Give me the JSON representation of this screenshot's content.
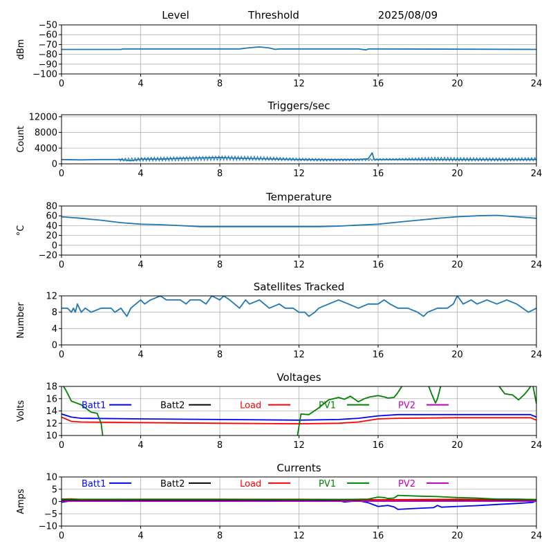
{
  "header": {
    "level_label": "Level",
    "threshold_label": "Threshold",
    "date": "2025/08/09"
  },
  "colors": {
    "series": "#1f77b4",
    "grid": "#b0b0b0"
  },
  "legend": [
    {
      "name": "Batt1",
      "color": "#0000ff"
    },
    {
      "name": "Batt2",
      "color": "#000000"
    },
    {
      "name": "Load",
      "color": "#ff0000"
    },
    {
      "name": "PV1",
      "color": "#008000"
    },
    {
      "name": "PV2",
      "color": "#c000c0"
    }
  ],
  "chart_data": [
    {
      "id": "level",
      "type": "line",
      "title": "",
      "ylabel": "dBm",
      "xlim": [
        0,
        24
      ],
      "ylim": [
        -100,
        -50
      ],
      "xticks": [
        0,
        4,
        8,
        12,
        16,
        20,
        24
      ],
      "yticks": [
        -100,
        -90,
        -80,
        -70,
        -60,
        -50
      ],
      "grid": true,
      "series": [
        {
          "color": "#1f77b4",
          "x": [
            0,
            3,
            3.1,
            9,
            9.4,
            10.0,
            10.5,
            10.8,
            11,
            15,
            15.4,
            15.5,
            16,
            24
          ],
          "y": [
            -75,
            -75,
            -74.5,
            -74.5,
            -73.5,
            -72.5,
            -73.5,
            -75,
            -74.5,
            -74.5,
            -75.5,
            -74.5,
            -74.5,
            -75
          ]
        }
      ]
    },
    {
      "id": "triggers",
      "type": "line",
      "title": "Triggers/sec",
      "ylabel": "Count",
      "xlim": [
        0,
        24
      ],
      "ylim": [
        0,
        12500
      ],
      "xticks": [
        0,
        4,
        8,
        12,
        16,
        20,
        24
      ],
      "yticks": [
        0,
        4000,
        8000,
        12000
      ],
      "grid": true,
      "series": [
        {
          "color": "#1f77b4",
          "x": [
            0,
            1,
            2,
            3,
            3.5,
            4,
            5,
            6,
            7,
            8,
            9,
            10,
            11,
            12,
            13,
            14,
            15,
            15.5,
            15.7,
            15.8,
            16,
            17,
            18,
            19,
            20,
            21,
            22,
            23,
            24
          ],
          "y": [
            1100,
            1000,
            1100,
            1100,
            800,
            1200,
            1200,
            1400,
            1500,
            1600,
            1400,
            1300,
            1200,
            1100,
            1100,
            1100,
            1100,
            1300,
            2800,
            1100,
            1100,
            1100,
            1100,
            1100,
            1100,
            1100,
            1100,
            1100,
            1100
          ],
          "band": {
            "from": 2.9,
            "to": 24,
            "low": [
              700,
              700,
              800,
              900,
              900,
              800,
              700,
              800,
              900,
              800,
              700,
              700,
              800
            ],
            "high": [
              1400,
              1700,
              1800,
              2000,
              1900,
              1500,
              1300,
              1300,
              1400,
              1700,
              1600,
              1500,
              1600
            ]
          }
        }
      ]
    },
    {
      "id": "temperature",
      "type": "line",
      "title": "Temperature",
      "ylabel": "°C",
      "xlim": [
        0,
        24
      ],
      "ylim": [
        -20,
        80
      ],
      "xticks": [
        0,
        4,
        8,
        12,
        16,
        20,
        24
      ],
      "yticks": [
        -20,
        0,
        20,
        40,
        60,
        80
      ],
      "grid": true,
      "series": [
        {
          "color": "#1f77b4",
          "x": [
            0,
            1,
            2,
            3,
            4,
            5,
            6,
            7,
            8,
            9,
            10,
            11,
            12,
            13,
            14,
            15,
            16,
            17,
            18,
            19,
            20,
            21,
            22,
            23,
            24
          ],
          "y": [
            58,
            55,
            51,
            46,
            43,
            42,
            40,
            38,
            38,
            38,
            38,
            38,
            38,
            38,
            39,
            41,
            43,
            47,
            51,
            55,
            58,
            60,
            61,
            58,
            55
          ]
        }
      ]
    },
    {
      "id": "satellites",
      "type": "line",
      "title": "Satellites Tracked",
      "ylabel": "Number",
      "xlim": [
        0,
        24
      ],
      "ylim": [
        0,
        12
      ],
      "xticks": [
        0,
        4,
        8,
        12,
        16,
        20,
        24
      ],
      "yticks": [
        0,
        4,
        8,
        12
      ],
      "grid": true,
      "series": [
        {
          "color": "#1f77b4",
          "x": [
            0,
            0.3,
            0.5,
            0.6,
            0.7,
            0.8,
            1.0,
            1.2,
            1.5,
            2.0,
            2.5,
            2.7,
            3.0,
            3.3,
            3.5,
            4.0,
            4.2,
            4.5,
            5.0,
            5.3,
            5.5,
            6.0,
            6.3,
            6.5,
            7.0,
            7.3,
            7.6,
            8.0,
            8.2,
            8.5,
            9.0,
            9.3,
            9.5,
            10.0,
            10.5,
            11.0,
            11.3,
            11.7,
            12.0,
            12.3,
            12.5,
            12.8,
            13.0,
            13.5,
            14.0,
            14.5,
            15.0,
            15.5,
            16.0,
            16.3,
            16.6,
            17.0,
            17.5,
            18.0,
            18.3,
            18.5,
            19.0,
            19.5,
            19.8,
            20.0,
            20.3,
            20.7,
            21.0,
            21.5,
            22.0,
            22.5,
            23.0,
            23.3,
            23.6,
            24.0
          ],
          "y": [
            9,
            9,
            8,
            9,
            8,
            10,
            8,
            9,
            8,
            9,
            9,
            8,
            9,
            7,
            9,
            11,
            10,
            11,
            12,
            11,
            11,
            11,
            10,
            11,
            11,
            10,
            12,
            11,
            12,
            11,
            9,
            11,
            10,
            11,
            9,
            10,
            9,
            9,
            8,
            8,
            7,
            8,
            9,
            10,
            11,
            10,
            9,
            10,
            10,
            11,
            10,
            9,
            9,
            8,
            7,
            8,
            9,
            9,
            10,
            12,
            10,
            11,
            10,
            11,
            10,
            11,
            10,
            9,
            8,
            9
          ]
        }
      ]
    },
    {
      "id": "voltages",
      "type": "line",
      "title": "Voltages",
      "ylabel": "Volts",
      "xlim": [
        0,
        24
      ],
      "ylim": [
        10,
        18
      ],
      "xticks": [
        0,
        4,
        8,
        12,
        16,
        20,
        24
      ],
      "yticks": [
        10,
        12,
        14,
        16,
        18
      ],
      "grid": true,
      "legend": "upper",
      "legend_y": 15.0,
      "series": [
        {
          "name": "Batt1",
          "color": "#0000ff",
          "x": [
            0,
            0.5,
            1,
            4,
            8,
            12,
            14,
            15,
            16,
            17,
            20,
            23,
            23.7,
            24
          ],
          "y": [
            13.5,
            13.0,
            12.8,
            12.7,
            12.6,
            12.5,
            12.6,
            12.8,
            13.2,
            13.4,
            13.4,
            13.4,
            13.4,
            13.0
          ]
        },
        {
          "name": "Batt2",
          "color": "#000000",
          "x": [],
          "y": []
        },
        {
          "name": "Load",
          "color": "#ff0000",
          "x": [
            0,
            0.5,
            1,
            4,
            8,
            12,
            14,
            15,
            16,
            17,
            20,
            23,
            23.7,
            24
          ],
          "y": [
            13.0,
            12.3,
            12.2,
            12.1,
            12.0,
            11.9,
            12.0,
            12.2,
            12.7,
            12.8,
            12.9,
            12.9,
            12.9,
            12.5
          ]
        },
        {
          "name": "PV1",
          "color": "#008000",
          "x": [
            0,
            0.2,
            0.5,
            1,
            1.5,
            1.8,
            2.0,
            2.1,
            11.9,
            12.1,
            12.5,
            13,
            13.5,
            14,
            14.3,
            14.6,
            15.0,
            15.3,
            15.6,
            16.0,
            16.3,
            16.5,
            16.8,
            17.0,
            17.3,
            18.5,
            18.7,
            18.9,
            19.0,
            19.2,
            22.0,
            22.4,
            22.8,
            23.1,
            23.4,
            23.6,
            23.8,
            24.0
          ],
          "y": [
            18.5,
            17.5,
            15.6,
            15.0,
            13.8,
            13.6,
            12.0,
            9.5,
            9.5,
            13.5,
            13.4,
            14.5,
            15.8,
            16.2,
            15.9,
            16.4,
            15.5,
            16.0,
            16.3,
            16.5,
            16.3,
            16.1,
            16.2,
            17.0,
            18.5,
            18.5,
            16.8,
            15.3,
            16.0,
            18.5,
            18.5,
            16.8,
            16.6,
            15.8,
            16.7,
            17.5,
            18.5,
            15.2
          ]
        },
        {
          "name": "PV2",
          "color": "#c000c0",
          "x": [],
          "y": []
        }
      ]
    },
    {
      "id": "currents",
      "type": "line",
      "title": "Currents",
      "ylabel": "Amps",
      "xlim": [
        0,
        24
      ],
      "ylim": [
        -10,
        10
      ],
      "xticks": [
        0,
        4,
        8,
        12,
        16,
        20,
        24
      ],
      "yticks": [
        -10,
        -5,
        0,
        5,
        10
      ],
      "grid": true,
      "legend": "upper",
      "legend_y": 7.5,
      "series": [
        {
          "name": "Batt1",
          "color": "#0000ff",
          "x": [
            0,
            0.4,
            1,
            4,
            8,
            12,
            14,
            14.3,
            15,
            15.5,
            16,
            16.5,
            16.8,
            17,
            17.5,
            18,
            18.8,
            19,
            19.2,
            20,
            21,
            22,
            23,
            23.8,
            24
          ],
          "y": [
            -0.3,
            0.2,
            0.3,
            0.3,
            0.4,
            0.3,
            0.3,
            -0.2,
            0.3,
            -0.5,
            -2.0,
            -1.6,
            -2.2,
            -3.2,
            -3.0,
            -2.8,
            -2.5,
            -1.6,
            -2.3,
            -2.0,
            -1.7,
            -1.2,
            -0.8,
            -0.4,
            0.3
          ]
        },
        {
          "name": "Batt2",
          "color": "#000000",
          "x": [
            0,
            24
          ],
          "y": [
            0.6,
            0.6
          ]
        },
        {
          "name": "Load",
          "color": "#ff0000",
          "x": [
            0,
            0.5,
            1,
            4,
            8,
            12,
            15,
            16,
            20,
            24
          ],
          "y": [
            1.0,
            1.1,
            0.8,
            0.9,
            0.9,
            0.9,
            0.8,
            0.7,
            0.9,
            0.8
          ]
        },
        {
          "name": "PV1",
          "color": "#008000",
          "x": [
            0,
            1,
            4,
            8,
            12,
            15,
            15.5,
            16,
            16.3,
            16.5,
            16.8,
            17,
            18,
            19,
            20,
            21,
            22,
            23,
            24
          ],
          "y": [
            0.9,
            0.9,
            0.9,
            0.9,
            0.8,
            0.9,
            1.0,
            1.8,
            1.6,
            1.2,
            1.4,
            2.5,
            2.2,
            2.0,
            1.6,
            1.4,
            1.0,
            1.0,
            0.8
          ]
        },
        {
          "name": "PV2",
          "color": "#c000c0",
          "x": [
            0,
            1,
            4,
            8,
            12,
            16,
            20,
            24
          ],
          "y": [
            0.2,
            0.1,
            0.1,
            0.1,
            0.1,
            0.1,
            0.1,
            0.1
          ]
        }
      ]
    }
  ]
}
